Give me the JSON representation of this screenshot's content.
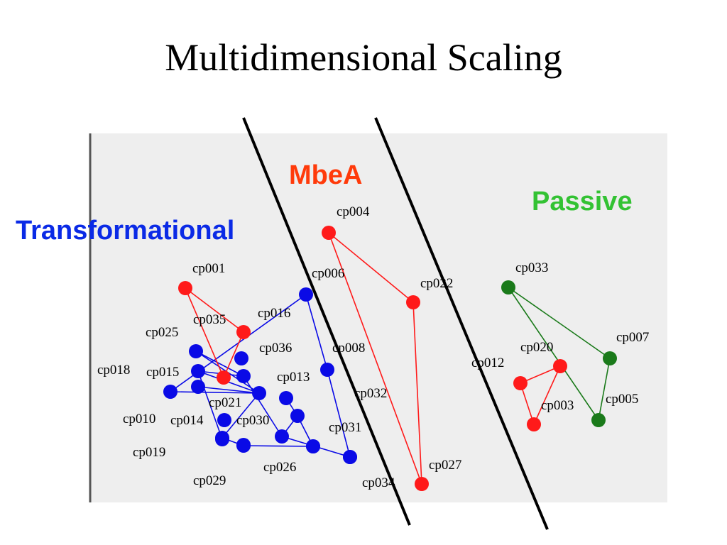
{
  "title": "Multidimensional Scaling",
  "colors": {
    "red": "#ff1a1a",
    "blue": "#0a0ae6",
    "green": "#1a7a1a",
    "mbea_label": "#ff3a0a",
    "transformational_label": "#0a2ae6",
    "passive_label": "#33c233",
    "panel_bg": "#eeeeee"
  },
  "groups": [
    {
      "key": "mbea",
      "label": "MbeA",
      "color": "#ff3a0a"
    },
    {
      "key": "passive",
      "label": "Passive",
      "color": "#33c233"
    },
    {
      "key": "transformational",
      "label": "Transformational",
      "color": "#0a2ae6"
    }
  ],
  "nodes": [
    {
      "id": "cp001",
      "label": "cp001",
      "group": "red"
    },
    {
      "id": "cp035",
      "label": "cp035",
      "group": "red"
    },
    {
      "id": "cp021",
      "label": "cp021",
      "group": "red"
    },
    {
      "id": "cp004",
      "label": "cp004",
      "group": "red"
    },
    {
      "id": "cp022",
      "label": "cp022",
      "group": "red"
    },
    {
      "id": "cp027",
      "label": "cp027",
      "group": "red"
    },
    {
      "id": "cp012",
      "label": "cp012",
      "group": "red"
    },
    {
      "id": "cp020",
      "label": "cp020",
      "group": "red"
    },
    {
      "id": "cp003",
      "label": "cp003",
      "group": "red"
    },
    {
      "id": "cp033",
      "label": "cp033",
      "group": "green"
    },
    {
      "id": "cp007",
      "label": "cp007",
      "group": "green"
    },
    {
      "id": "cp005",
      "label": "cp005",
      "group": "green"
    },
    {
      "id": "cp006",
      "label": "cp006",
      "group": "blue"
    },
    {
      "id": "cp016",
      "label": "cp016",
      "group": "blue"
    },
    {
      "id": "cp025",
      "label": "cp025",
      "group": "blue"
    },
    {
      "id": "cp036",
      "label": "cp036",
      "group": "blue"
    },
    {
      "id": "cp015",
      "label": "cp015",
      "group": "blue"
    },
    {
      "id": "cp018",
      "label": "cp018",
      "group": "blue"
    },
    {
      "id": "cp013",
      "label": "cp013",
      "group": "blue"
    },
    {
      "id": "cp008",
      "label": "cp008",
      "group": "blue"
    },
    {
      "id": "cp010",
      "label": "cp010",
      "group": "blue"
    },
    {
      "id": "cp014",
      "label": "cp014",
      "group": "blue"
    },
    {
      "id": "cp030",
      "label": "cp030",
      "group": "blue"
    },
    {
      "id": "cp019",
      "label": "cp019",
      "group": "blue"
    },
    {
      "id": "cp029",
      "label": "cp029",
      "group": "blue"
    },
    {
      "id": "cp026",
      "label": "cp026",
      "group": "blue"
    },
    {
      "id": "cp031",
      "label": "cp031",
      "group": "blue"
    },
    {
      "id": "cp032",
      "label": "cp032",
      "group": "blue"
    },
    {
      "id": "cp034",
      "label": "cp034",
      "group": "blue"
    },
    {
      "id": "b1",
      "label": "",
      "group": "blue"
    },
    {
      "id": "b2",
      "label": "",
      "group": "blue"
    },
    {
      "id": "b3",
      "label": "",
      "group": "blue"
    },
    {
      "id": "b4",
      "label": "",
      "group": "blue"
    }
  ],
  "red_edges": [
    [
      "cp001",
      "cp021"
    ],
    [
      "cp001",
      "cp035"
    ],
    [
      "cp035",
      "cp021"
    ],
    [
      "cp004",
      "cp022"
    ],
    [
      "cp022",
      "cp027"
    ],
    [
      "cp027",
      "cp004"
    ],
    [
      "cp012",
      "cp020"
    ],
    [
      "cp020",
      "cp003"
    ],
    [
      "cp003",
      "cp012"
    ]
  ],
  "green_edges": [
    [
      "cp033",
      "cp007"
    ],
    [
      "cp007",
      "cp005"
    ],
    [
      "cp005",
      "cp033"
    ]
  ],
  "blue_edges": [
    [
      "cp006",
      "cp018"
    ],
    [
      "cp006",
      "cp008"
    ],
    [
      "cp008",
      "cp034"
    ],
    [
      "cp018",
      "cp013"
    ],
    [
      "cp025",
      "cp013"
    ],
    [
      "cp025",
      "cp036"
    ],
    [
      "cp036",
      "cp015"
    ],
    [
      "cp015",
      "cp013"
    ],
    [
      "cp036",
      "cp030"
    ],
    [
      "cp013",
      "cp014"
    ],
    [
      "cp014",
      "cp029"
    ],
    [
      "cp029",
      "cp026"
    ],
    [
      "cp026",
      "b3"
    ],
    [
      "b3",
      "cp030"
    ],
    [
      "cp030",
      "cp034"
    ],
    [
      "b1",
      "cp013"
    ],
    [
      "b2",
      "b3"
    ],
    [
      "cp015",
      "b4"
    ]
  ]
}
